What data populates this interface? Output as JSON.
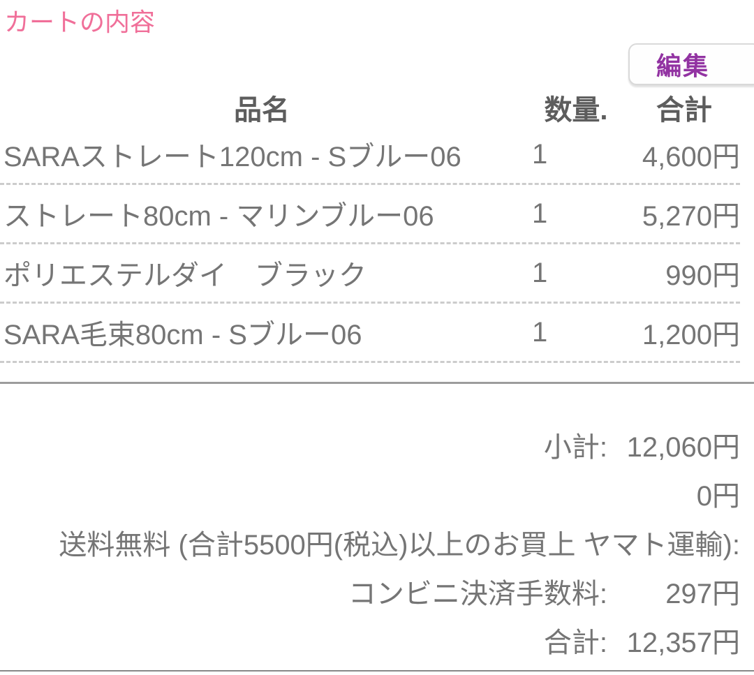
{
  "page": {
    "title": "カートの内容"
  },
  "toolbar": {
    "edit_label": "編集"
  },
  "cart_table": {
    "headers": {
      "name": "品名",
      "qty": "数量.",
      "total": "合計"
    },
    "rows": [
      {
        "name": "SARAストレート120cm - Sブルー06",
        "qty": "1",
        "total": "4,600円"
      },
      {
        "name": "ストレート80cm - マリンブルー06",
        "qty": "1",
        "total": "5,270円"
      },
      {
        "name": "ポリエステルダイ　ブラック",
        "qty": "1",
        "total": "990円"
      },
      {
        "name": "SARA毛束80cm - Sブルー06",
        "qty": "1",
        "total": "1,200円"
      }
    ]
  },
  "summary": {
    "subtotal_label": "小計:",
    "subtotal_value": "12,060円",
    "discount_value": "0円",
    "shipping_label": "送料無料 (合計5500円(税込)以上のお買上 ヤマト運輸):",
    "fee_label": "コンビニ決済手数料:",
    "fee_value": "297円",
    "total_label": "合計:",
    "total_value": "12,357円"
  },
  "colors": {
    "title_pink": "#f06f99",
    "button_purple": "#9233a2",
    "header_gray": "#5d5d5d",
    "text_gray": "#757575",
    "dashed_divider": "#cccccc",
    "solid_divider": "#9c9c9c"
  }
}
